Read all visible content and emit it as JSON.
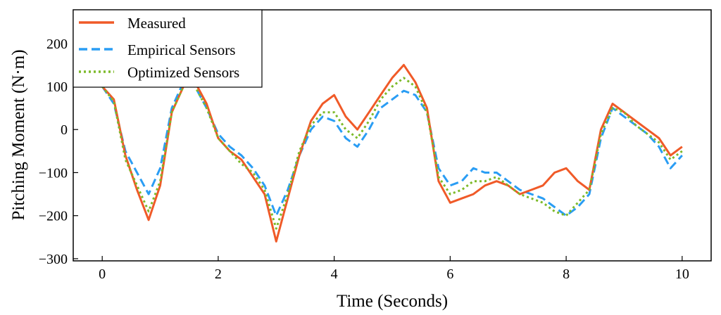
{
  "chart_data": {
    "type": "line",
    "title": "",
    "xlabel": "Time (Seconds)",
    "ylabel": "Pitching Moment (N·m)",
    "xlim": [
      -0.5,
      10.5
    ],
    "ylim": [
      -305,
      278
    ],
    "xticks": [
      0,
      2,
      4,
      6,
      8,
      10
    ],
    "yticks": [
      -300,
      -200,
      -100,
      0,
      100,
      200
    ],
    "tick_labels": {
      "x": [
        "0",
        "2",
        "4",
        "6",
        "8",
        "10"
      ],
      "y": [
        "−300",
        "−200",
        "−100",
        "0",
        "100",
        "200"
      ]
    },
    "grid": false,
    "legend_position": "top-left",
    "x": [
      0.0,
      0.2,
      0.4,
      0.6,
      0.8,
      1.0,
      1.2,
      1.4,
      1.6,
      1.8,
      2.0,
      2.2,
      2.4,
      2.6,
      2.8,
      3.0,
      3.2,
      3.4,
      3.6,
      3.8,
      4.0,
      4.2,
      4.4,
      4.6,
      4.8,
      5.0,
      5.2,
      5.4,
      5.6,
      5.8,
      6.0,
      6.2,
      6.4,
      6.6,
      6.8,
      7.0,
      7.2,
      7.4,
      7.6,
      7.8,
      8.0,
      8.2,
      8.4,
      8.6,
      8.8,
      9.0,
      9.2,
      9.4,
      9.6,
      9.8,
      10.0
    ],
    "series": [
      {
        "name": "Measured",
        "color": "#f05a28",
        "dash": "solid",
        "values": [
          100,
          70,
          -60,
          -140,
          -210,
          -130,
          40,
          100,
          110,
          60,
          -20,
          -50,
          -70,
          -110,
          -150,
          -260,
          -160,
          -60,
          20,
          60,
          80,
          30,
          0,
          40,
          80,
          120,
          150,
          110,
          50,
          -120,
          -170,
          -160,
          -150,
          -130,
          -120,
          -130,
          -150,
          -140,
          -130,
          -100,
          -90,
          -120,
          -140,
          0,
          60,
          40,
          20,
          0,
          -20,
          -60,
          -40
        ]
      },
      {
        "name": "Empirical Sensors",
        "color": "#2a9df4",
        "dash": "dashed",
        "values": [
          100,
          60,
          -50,
          -100,
          -150,
          -90,
          50,
          110,
          100,
          50,
          -10,
          -40,
          -60,
          -90,
          -130,
          -200,
          -140,
          -60,
          0,
          30,
          20,
          -20,
          -40,
          0,
          50,
          70,
          90,
          80,
          40,
          -90,
          -130,
          -120,
          -90,
          -100,
          -100,
          -120,
          -140,
          -150,
          -160,
          -180,
          -200,
          -180,
          -150,
          -20,
          50,
          30,
          10,
          -10,
          -40,
          -90,
          -60
        ]
      },
      {
        "name": "Optimized Sensors",
        "color": "#7dba2a",
        "dash": "dotted",
        "values": [
          100,
          65,
          -70,
          -130,
          -190,
          -120,
          40,
          100,
          100,
          50,
          -20,
          -50,
          -80,
          -100,
          -140,
          -230,
          -150,
          -50,
          10,
          40,
          40,
          0,
          -20,
          20,
          70,
          100,
          120,
          100,
          40,
          -110,
          -150,
          -140,
          -120,
          -120,
          -110,
          -130,
          -150,
          -160,
          -170,
          -190,
          -200,
          -170,
          -140,
          -10,
          50,
          40,
          10,
          -10,
          -30,
          -70,
          -50
        ]
      }
    ]
  }
}
